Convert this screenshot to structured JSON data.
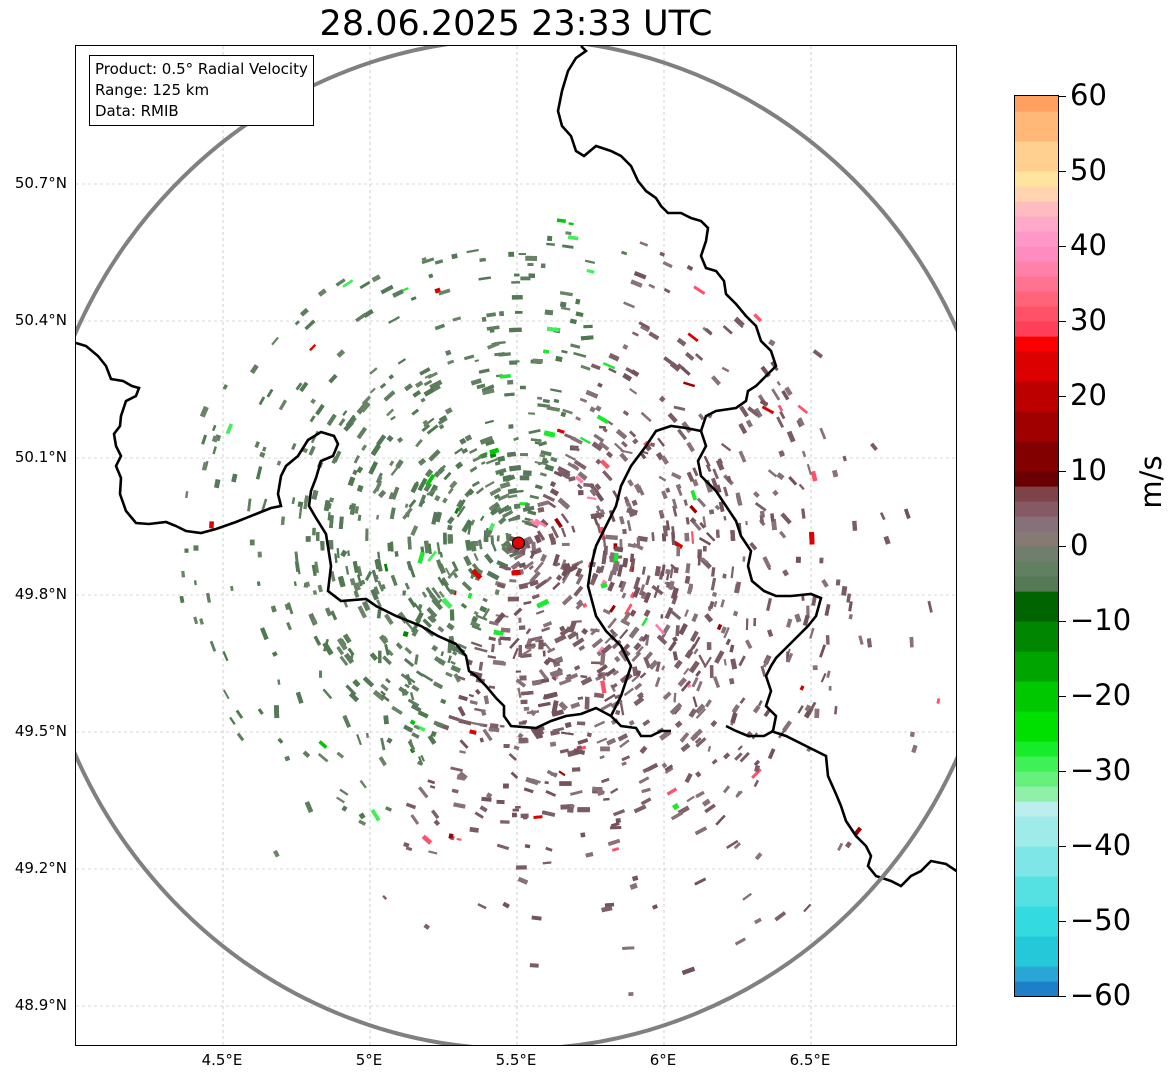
{
  "title": "28.06.2025 23:33 UTC",
  "info_box": {
    "product": "Product: 0.5° Radial Velocity",
    "range": "Range: 125 km",
    "data": "Data: RMIB"
  },
  "map": {
    "lon_range": [
      4.0,
      7.0
    ],
    "lat_range": [
      48.8,
      50.98
    ],
    "radar_site": {
      "lon": 5.505,
      "lat": 49.914
    },
    "range_ring_km": 125,
    "lat_ticks": [
      {
        "value": 50.7,
        "label": "50.7°N"
      },
      {
        "value": 50.4,
        "label": "50.4°N"
      },
      {
        "value": 50.1,
        "label": "50.1°N"
      },
      {
        "value": 49.8,
        "label": "49.8°N"
      },
      {
        "value": 49.5,
        "label": "49.5°N"
      },
      {
        "value": 49.2,
        "label": "49.2°N"
      },
      {
        "value": 48.9,
        "label": "48.9°N"
      }
    ],
    "lon_ticks": [
      {
        "value": 4.5,
        "label": "4.5°E"
      },
      {
        "value": 5.0,
        "label": "5°E"
      },
      {
        "value": 5.5,
        "label": "5.5°E"
      },
      {
        "value": 6.0,
        "label": "6°E"
      },
      {
        "value": 6.5,
        "label": "6.5°E"
      }
    ],
    "colors": {
      "border": "#000000",
      "range_ring": "#808080",
      "grid": "#b0b0b0",
      "radar_marker": "#e00000",
      "inbound_green": "#5e7e5e",
      "outbound_maroon": "#7e5a62"
    }
  },
  "colorbar": {
    "unit": "m/s",
    "min": -60,
    "max": 60,
    "ticks": [
      {
        "value": 60,
        "label": "60"
      },
      {
        "value": 50,
        "label": "50"
      },
      {
        "value": 40,
        "label": "40"
      },
      {
        "value": 30,
        "label": "30"
      },
      {
        "value": 20,
        "label": "20"
      },
      {
        "value": 10,
        "label": "10"
      },
      {
        "value": 0,
        "label": "0"
      },
      {
        "value": -10,
        "label": "−10"
      },
      {
        "value": -20,
        "label": "−20"
      },
      {
        "value": -30,
        "label": "−30"
      },
      {
        "value": -40,
        "label": "−40"
      },
      {
        "value": -50,
        "label": "−50"
      },
      {
        "value": -60,
        "label": "−60"
      }
    ],
    "stops": [
      {
        "from": -60,
        "to": -58,
        "color": "#1f7ec8"
      },
      {
        "from": -58,
        "to": -56,
        "color": "#2aa6d6"
      },
      {
        "from": -56,
        "to": -52,
        "color": "#24c8d8"
      },
      {
        "from": -52,
        "to": -48,
        "color": "#33dbe0"
      },
      {
        "from": -48,
        "to": -44,
        "color": "#55e0e2"
      },
      {
        "from": -44,
        "to": -40,
        "color": "#7ee6e6"
      },
      {
        "from": -40,
        "to": -36,
        "color": "#9eebea"
      },
      {
        "from": -36,
        "to": -34,
        "color": "#bdeeee"
      },
      {
        "from": -34,
        "to": -32,
        "color": "#90f0a8"
      },
      {
        "from": -32,
        "to": -30,
        "color": "#66f07c"
      },
      {
        "from": -30,
        "to": -28,
        "color": "#40f058"
      },
      {
        "from": -28,
        "to": -26,
        "color": "#18ec2a"
      },
      {
        "from": -26,
        "to": -22,
        "color": "#00e000"
      },
      {
        "from": -22,
        "to": -18,
        "color": "#00c800"
      },
      {
        "from": -18,
        "to": -14,
        "color": "#00a400"
      },
      {
        "from": -14,
        "to": -10,
        "color": "#008600"
      },
      {
        "from": -10,
        "to": -6,
        "color": "#006400"
      },
      {
        "from": -6,
        "to": -4,
        "color": "#557955"
      },
      {
        "from": -4,
        "to": -2,
        "color": "#608060"
      },
      {
        "from": -2,
        "to": 0,
        "color": "#707e6e"
      },
      {
        "from": 0,
        "to": 2,
        "color": "#857a74"
      },
      {
        "from": 2,
        "to": 4,
        "color": "#86707a"
      },
      {
        "from": 4,
        "to": 6,
        "color": "#865a64"
      },
      {
        "from": 6,
        "to": 8,
        "color": "#7e4248"
      },
      {
        "from": 8,
        "to": 10,
        "color": "#6a0000"
      },
      {
        "from": 10,
        "to": 14,
        "color": "#820000"
      },
      {
        "from": 14,
        "to": 18,
        "color": "#a00000"
      },
      {
        "from": 18,
        "to": 22,
        "color": "#bc0000"
      },
      {
        "from": 22,
        "to": 26,
        "color": "#dc0000"
      },
      {
        "from": 26,
        "to": 28,
        "color": "#f80000"
      },
      {
        "from": 28,
        "to": 30,
        "color": "#ff4058"
      },
      {
        "from": 30,
        "to": 32,
        "color": "#ff5268"
      },
      {
        "from": 32,
        "to": 34,
        "color": "#ff6478"
      },
      {
        "from": 34,
        "to": 36,
        "color": "#ff7290"
      },
      {
        "from": 36,
        "to": 38,
        "color": "#ff80a8"
      },
      {
        "from": 38,
        "to": 40,
        "color": "#ff8cc0"
      },
      {
        "from": 40,
        "to": 42,
        "color": "#ff98c8"
      },
      {
        "from": 42,
        "to": 44,
        "color": "#ffa8c8"
      },
      {
        "from": 44,
        "to": 46,
        "color": "#ffbcc0"
      },
      {
        "from": 46,
        "to": 48,
        "color": "#ffd4b0"
      },
      {
        "from": 48,
        "to": 50,
        "color": "#ffe4a0"
      },
      {
        "from": 50,
        "to": 54,
        "color": "#ffd090"
      },
      {
        "from": 54,
        "to": 58,
        "color": "#ffb878"
      },
      {
        "from": 58,
        "to": 60,
        "color": "#ffa060"
      }
    ]
  }
}
